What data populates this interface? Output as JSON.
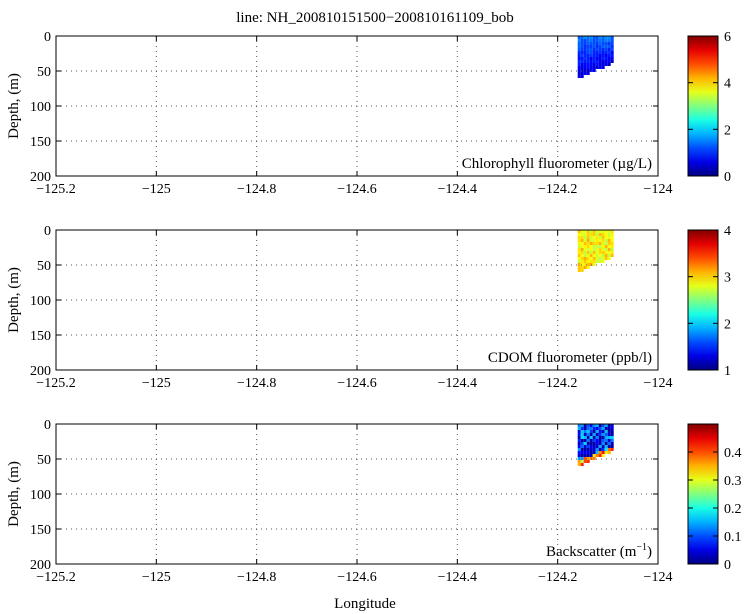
{
  "title": "line: NH_200810151500−200810161109_bob",
  "xlabel": "Longitude",
  "chart_data": [
    {
      "type": "heatmap",
      "label": "Chlorophyll fluorometer (µg/L)",
      "ylabel": "Depth, (m)",
      "xlim": [
        -125.2,
        -124.0
      ],
      "ylim": [
        0,
        200
      ],
      "y_inverted": true,
      "x_ticks": [
        "−125.2",
        "−125",
        "−124.8",
        "−124.6",
        "−124.4",
        "−124.2",
        "−124"
      ],
      "y_ticks": [
        "0",
        "50",
        "100",
        "150",
        "200"
      ],
      "colorbar": {
        "range": [
          0,
          6
        ],
        "ticks": [
          "0",
          "2",
          "4",
          "6"
        ],
        "colormap": "jet"
      },
      "data_region": {
        "lon_range": [
          -124.16,
          -124.09
        ],
        "depth_range": [
          0,
          58
        ],
        "typical_value": 0.8,
        "value_range": [
          0.3,
          1.6
        ]
      }
    },
    {
      "type": "heatmap",
      "label": "CDOM fluorometer (ppb/l)",
      "ylabel": "Depth, (m)",
      "xlim": [
        -125.2,
        -124.0
      ],
      "ylim": [
        0,
        200
      ],
      "y_inverted": true,
      "x_ticks": [
        "−125.2",
        "−125",
        "−124.8",
        "−124.6",
        "−124.4",
        "−124.2",
        "−124"
      ],
      "y_ticks": [
        "0",
        "50",
        "100",
        "150",
        "200"
      ],
      "colorbar": {
        "range": [
          1,
          4
        ],
        "ticks": [
          "1",
          "2",
          "3",
          "4"
        ],
        "colormap": "jet"
      },
      "data_region": {
        "lon_range": [
          -124.16,
          -124.09
        ],
        "depth_range": [
          0,
          58
        ],
        "typical_value": 2.9,
        "value_range": [
          2.4,
          3.3
        ]
      }
    },
    {
      "type": "heatmap",
      "label": "Backscatter (m",
      "label_sup": "−1",
      "label_end": ")",
      "ylabel": "Depth, (m)",
      "xlim": [
        -125.2,
        -124.0
      ],
      "ylim": [
        0,
        200
      ],
      "y_inverted": true,
      "x_ticks": [
        "−125.2",
        "−125",
        "−124.8",
        "−124.6",
        "−124.4",
        "−124.2",
        "−124"
      ],
      "y_ticks": [
        "0",
        "50",
        "100",
        "150",
        "200"
      ],
      "colorbar": {
        "range": [
          0,
          0.5
        ],
        "ticks": [
          "0",
          "0.1",
          "0.2",
          "0.3",
          "0.4"
        ],
        "colormap": "jet"
      },
      "data_region": {
        "lon_range": [
          -124.16,
          -124.09
        ],
        "depth_range": [
          0,
          58
        ],
        "typical_value": 0.07,
        "value_range": [
          0.02,
          0.45
        ]
      }
    }
  ],
  "colors": {
    "axis": "#000000",
    "grid": "#555555",
    "background": "#ffffff"
  }
}
